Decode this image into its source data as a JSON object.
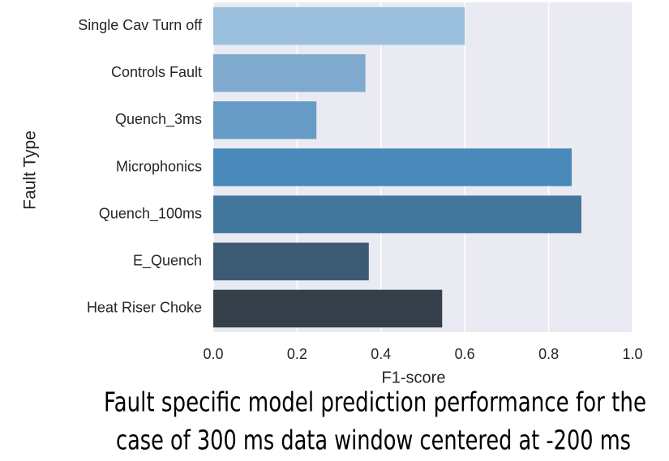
{
  "chart_data": {
    "type": "barh",
    "title": [
      "Fault specific model prediction performance for the",
      "case of 300 ms data window centered at -200 ms"
    ],
    "xlabel": "F1-score",
    "ylabel": "Fault Type",
    "categories": [
      "Single Cav Turn off",
      "Controls Fault",
      "Quench_3ms",
      "Microphonics",
      "Quench_100ms",
      "E_Quench",
      "Heat Riser Choke"
    ],
    "values": [
      0.6,
      0.363,
      0.246,
      0.855,
      0.878,
      0.371,
      0.546
    ],
    "colors": [
      "#9bc0dd",
      "#7faacd",
      "#659bc4",
      "#4a8abb",
      "#43769c",
      "#3d5a75",
      "#36404b"
    ],
    "xlim": [
      0,
      1
    ],
    "xticks": [
      {
        "value": 0,
        "label": "0.0"
      },
      {
        "value": 0.2,
        "label": "0.2"
      },
      {
        "value": 0.4,
        "label": "0.4"
      },
      {
        "value": 0.6,
        "label": "0.6"
      },
      {
        "value": 0.8,
        "label": "0.8"
      },
      {
        "value": 1,
        "label": "1.0"
      }
    ],
    "grid": true
  }
}
